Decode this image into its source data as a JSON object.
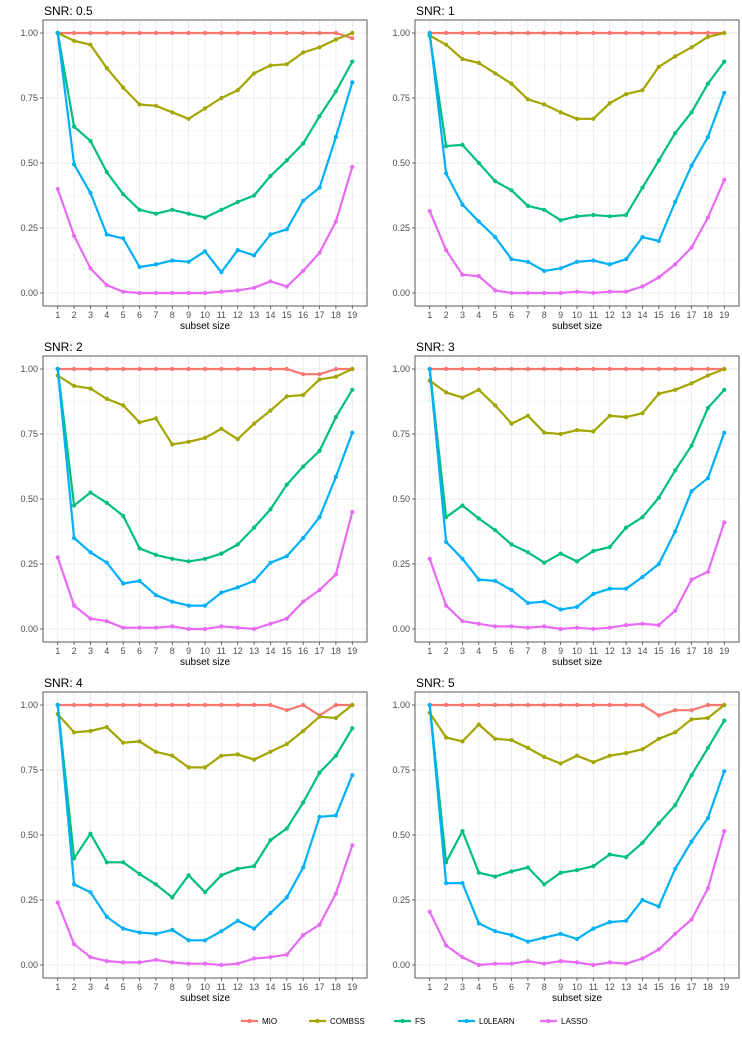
{
  "chart_data": [
    {
      "type": "line",
      "title": "SNR: 0.5",
      "xlabel": "subset size",
      "ylabel": "",
      "xlim": [
        1,
        19
      ],
      "ylim": [
        0,
        1
      ],
      "x": [
        1,
        2,
        3,
        4,
        5,
        6,
        7,
        8,
        9,
        10,
        11,
        12,
        13,
        14,
        15,
        16,
        17,
        18,
        19
      ],
      "yticks": [
        "0.00",
        "0.25",
        "0.50",
        "0.75",
        "1.00"
      ],
      "series": [
        {
          "name": "MIO",
          "values": [
            1,
            1,
            1,
            1,
            1,
            1,
            1,
            1,
            1,
            1,
            1,
            1,
            1,
            1,
            1,
            1,
            1,
            1,
            0.98
          ]
        },
        {
          "name": "COMBSS",
          "values": [
            1,
            0.97,
            0.955,
            0.865,
            0.79,
            0.725,
            0.72,
            0.695,
            0.67,
            0.71,
            0.75,
            0.78,
            0.845,
            0.875,
            0.88,
            0.925,
            0.945,
            0.975,
            1
          ]
        },
        {
          "name": "FS",
          "values": [
            1,
            0.64,
            0.585,
            0.465,
            0.38,
            0.32,
            0.305,
            0.32,
            0.305,
            0.29,
            0.32,
            0.35,
            0.375,
            0.45,
            0.51,
            0.575,
            0.68,
            0.775,
            0.89
          ]
        },
        {
          "name": "L0LEARN",
          "values": [
            1,
            0.495,
            0.385,
            0.225,
            0.21,
            0.1,
            0.11,
            0.125,
            0.12,
            0.16,
            0.08,
            0.165,
            0.145,
            0.225,
            0.245,
            0.355,
            0.405,
            0.6,
            0.81
          ]
        },
        {
          "name": "LASSO",
          "values": [
            0.4,
            0.22,
            0.095,
            0.03,
            0.005,
            0,
            0,
            0,
            0,
            0,
            0.005,
            0.01,
            0.02,
            0.045,
            0.025,
            0.085,
            0.155,
            0.275,
            0.485
          ]
        }
      ]
    },
    {
      "type": "line",
      "title": "SNR: 1",
      "xlabel": "subset size",
      "ylabel": "",
      "xlim": [
        1,
        19
      ],
      "ylim": [
        0,
        1
      ],
      "x": [
        1,
        2,
        3,
        4,
        5,
        6,
        7,
        8,
        9,
        10,
        11,
        12,
        13,
        14,
        15,
        16,
        17,
        18,
        19
      ],
      "yticks": [
        "0.00",
        "0.25",
        "0.50",
        "0.75",
        "1.00"
      ],
      "series": [
        {
          "name": "MIO",
          "values": [
            1,
            1,
            1,
            1,
            1,
            1,
            1,
            1,
            1,
            1,
            1,
            1,
            1,
            1,
            1,
            1,
            1,
            1,
            1
          ]
        },
        {
          "name": "COMBSS",
          "values": [
            0.99,
            0.955,
            0.9,
            0.885,
            0.845,
            0.805,
            0.745,
            0.725,
            0.695,
            0.67,
            0.67,
            0.73,
            0.765,
            0.78,
            0.87,
            0.91,
            0.945,
            0.985,
            1
          ]
        },
        {
          "name": "FS",
          "values": [
            0.99,
            0.565,
            0.57,
            0.5,
            0.43,
            0.395,
            0.335,
            0.32,
            0.28,
            0.295,
            0.3,
            0.295,
            0.3,
            0.405,
            0.51,
            0.615,
            0.695,
            0.805,
            0.89
          ]
        },
        {
          "name": "L0LEARN",
          "values": [
            1,
            0.46,
            0.34,
            0.275,
            0.215,
            0.13,
            0.12,
            0.085,
            0.095,
            0.12,
            0.125,
            0.11,
            0.13,
            0.215,
            0.2,
            0.35,
            0.49,
            0.6,
            0.77
          ]
        },
        {
          "name": "LASSO",
          "values": [
            0.315,
            0.165,
            0.07,
            0.065,
            0.01,
            0,
            0,
            0,
            0,
            0.005,
            0,
            0.005,
            0.005,
            0.025,
            0.06,
            0.11,
            0.175,
            0.29,
            0.435
          ]
        }
      ]
    },
    {
      "type": "line",
      "title": "SNR: 2",
      "xlabel": "subset size",
      "ylabel": "",
      "xlim": [
        1,
        19
      ],
      "ylim": [
        0,
        1
      ],
      "x": [
        1,
        2,
        3,
        4,
        5,
        6,
        7,
        8,
        9,
        10,
        11,
        12,
        13,
        14,
        15,
        16,
        17,
        18,
        19
      ],
      "yticks": [
        "0.00",
        "0.25",
        "0.50",
        "0.75",
        "1.00"
      ],
      "series": [
        {
          "name": "MIO",
          "values": [
            1,
            1,
            1,
            1,
            1,
            1,
            1,
            1,
            1,
            1,
            1,
            1,
            1,
            1,
            1,
            0.98,
            0.98,
            1,
            1
          ]
        },
        {
          "name": "COMBSS",
          "values": [
            0.975,
            0.935,
            0.925,
            0.885,
            0.86,
            0.795,
            0.81,
            0.71,
            0.72,
            0.735,
            0.77,
            0.73,
            0.79,
            0.84,
            0.895,
            0.9,
            0.96,
            0.97,
            1
          ]
        },
        {
          "name": "FS",
          "values": [
            1,
            0.475,
            0.525,
            0.485,
            0.435,
            0.31,
            0.285,
            0.27,
            0.26,
            0.27,
            0.29,
            0.325,
            0.39,
            0.46,
            0.555,
            0.625,
            0.685,
            0.815,
            0.92
          ]
        },
        {
          "name": "L0LEARN",
          "values": [
            1,
            0.35,
            0.295,
            0.255,
            0.175,
            0.185,
            0.13,
            0.105,
            0.09,
            0.09,
            0.14,
            0.16,
            0.185,
            0.255,
            0.28,
            0.35,
            0.43,
            0.585,
            0.755
          ]
        },
        {
          "name": "LASSO",
          "values": [
            0.275,
            0.09,
            0.04,
            0.03,
            0.005,
            0.005,
            0.005,
            0.01,
            0,
            0,
            0.01,
            0.005,
            0,
            0.02,
            0.04,
            0.105,
            0.15,
            0.21,
            0.45
          ]
        }
      ]
    },
    {
      "type": "line",
      "title": "SNR: 3",
      "xlabel": "subset size",
      "ylabel": "",
      "xlim": [
        1,
        19
      ],
      "ylim": [
        0,
        1
      ],
      "x": [
        1,
        2,
        3,
        4,
        5,
        6,
        7,
        8,
        9,
        10,
        11,
        12,
        13,
        14,
        15,
        16,
        17,
        18,
        19
      ],
      "yticks": [
        "0.00",
        "0.25",
        "0.50",
        "0.75",
        "1.00"
      ],
      "series": [
        {
          "name": "MIO",
          "values": [
            1,
            1,
            1,
            1,
            1,
            1,
            1,
            1,
            1,
            1,
            1,
            1,
            1,
            1,
            1,
            1,
            1,
            1,
            1
          ]
        },
        {
          "name": "COMBSS",
          "values": [
            0.955,
            0.91,
            0.89,
            0.92,
            0.86,
            0.79,
            0.82,
            0.755,
            0.75,
            0.765,
            0.76,
            0.82,
            0.815,
            0.83,
            0.905,
            0.92,
            0.945,
            0.975,
            1
          ]
        },
        {
          "name": "FS",
          "values": [
            1,
            0.43,
            0.475,
            0.425,
            0.38,
            0.325,
            0.295,
            0.255,
            0.29,
            0.26,
            0.3,
            0.315,
            0.39,
            0.43,
            0.505,
            0.61,
            0.705,
            0.85,
            0.92
          ]
        },
        {
          "name": "L0LEARN",
          "values": [
            1,
            0.335,
            0.27,
            0.19,
            0.185,
            0.15,
            0.1,
            0.105,
            0.075,
            0.085,
            0.135,
            0.155,
            0.155,
            0.2,
            0.25,
            0.375,
            0.53,
            0.58,
            0.755
          ]
        },
        {
          "name": "LASSO",
          "values": [
            0.27,
            0.09,
            0.03,
            0.02,
            0.01,
            0.01,
            0.005,
            0.01,
            0,
            0.005,
            0,
            0.005,
            0.015,
            0.02,
            0.015,
            0.07,
            0.19,
            0.22,
            0.41
          ]
        }
      ]
    },
    {
      "type": "line",
      "title": "SNR: 4",
      "xlabel": "subset size",
      "ylabel": "",
      "xlim": [
        1,
        19
      ],
      "ylim": [
        0,
        1
      ],
      "x": [
        1,
        2,
        3,
        4,
        5,
        6,
        7,
        8,
        9,
        10,
        11,
        12,
        13,
        14,
        15,
        16,
        17,
        18,
        19
      ],
      "yticks": [
        "0.00",
        "0.25",
        "0.50",
        "0.75",
        "1.00"
      ],
      "series": [
        {
          "name": "MIO",
          "values": [
            1,
            1,
            1,
            1,
            1,
            1,
            1,
            1,
            1,
            1,
            1,
            1,
            1,
            1,
            0.98,
            1,
            0.96,
            1,
            1
          ]
        },
        {
          "name": "COMBSS",
          "values": [
            0.965,
            0.895,
            0.9,
            0.915,
            0.855,
            0.86,
            0.82,
            0.805,
            0.76,
            0.76,
            0.805,
            0.81,
            0.79,
            0.82,
            0.85,
            0.9,
            0.955,
            0.95,
            1
          ]
        },
        {
          "name": "FS",
          "values": [
            1,
            0.41,
            0.505,
            0.395,
            0.395,
            0.35,
            0.31,
            0.26,
            0.345,
            0.28,
            0.345,
            0.37,
            0.38,
            0.48,
            0.525,
            0.625,
            0.74,
            0.805,
            0.91
          ]
        },
        {
          "name": "L0LEARN",
          "values": [
            1,
            0.31,
            0.28,
            0.185,
            0.14,
            0.125,
            0.12,
            0.135,
            0.095,
            0.095,
            0.13,
            0.17,
            0.14,
            0.2,
            0.26,
            0.375,
            0.57,
            0.575,
            0.73
          ]
        },
        {
          "name": "LASSO",
          "values": [
            0.24,
            0.08,
            0.03,
            0.015,
            0.01,
            0.01,
            0.02,
            0.01,
            0.005,
            0.005,
            0,
            0.005,
            0.025,
            0.03,
            0.04,
            0.115,
            0.155,
            0.275,
            0.46
          ]
        }
      ]
    },
    {
      "type": "line",
      "title": "SNR: 5",
      "xlabel": "subset size",
      "ylabel": "",
      "xlim": [
        1,
        19
      ],
      "ylim": [
        0,
        1
      ],
      "x": [
        1,
        2,
        3,
        4,
        5,
        6,
        7,
        8,
        9,
        10,
        11,
        12,
        13,
        14,
        15,
        16,
        17,
        18,
        19
      ],
      "yticks": [
        "0.00",
        "0.25",
        "0.50",
        "0.75",
        "1.00"
      ],
      "series": [
        {
          "name": "MIO",
          "values": [
            1,
            1,
            1,
            1,
            1,
            1,
            1,
            1,
            1,
            1,
            1,
            1,
            1,
            1,
            0.96,
            0.98,
            0.98,
            1,
            1
          ]
        },
        {
          "name": "COMBSS",
          "values": [
            0.97,
            0.875,
            0.86,
            0.925,
            0.87,
            0.865,
            0.835,
            0.8,
            0.775,
            0.805,
            0.78,
            0.805,
            0.815,
            0.83,
            0.87,
            0.895,
            0.945,
            0.95,
            1
          ]
        },
        {
          "name": "FS",
          "values": [
            1,
            0.395,
            0.515,
            0.355,
            0.34,
            0.36,
            0.375,
            0.31,
            0.355,
            0.365,
            0.38,
            0.425,
            0.415,
            0.47,
            0.545,
            0.615,
            0.73,
            0.835,
            0.94
          ]
        },
        {
          "name": "L0LEARN",
          "values": [
            1,
            0.315,
            0.315,
            0.16,
            0.13,
            0.115,
            0.09,
            0.105,
            0.12,
            0.1,
            0.14,
            0.165,
            0.17,
            0.25,
            0.225,
            0.37,
            0.475,
            0.565,
            0.745
          ]
        },
        {
          "name": "LASSO",
          "values": [
            0.205,
            0.075,
            0.03,
            0,
            0.005,
            0.005,
            0.015,
            0.005,
            0.015,
            0.01,
            0,
            0.01,
            0.005,
            0.025,
            0.06,
            0.12,
            0.175,
            0.295,
            0.515
          ]
        }
      ]
    }
  ],
  "legend": {
    "placement": "bottom",
    "items": [
      {
        "name": "MIO",
        "color": "#F8766D"
      },
      {
        "name": "COMBSS",
        "color": "#A3A500"
      },
      {
        "name": "FS",
        "color": "#00BF7D"
      },
      {
        "name": "L0LEARN",
        "color": "#00B0F6"
      },
      {
        "name": "LASSO",
        "color": "#E76BF3"
      }
    ]
  }
}
